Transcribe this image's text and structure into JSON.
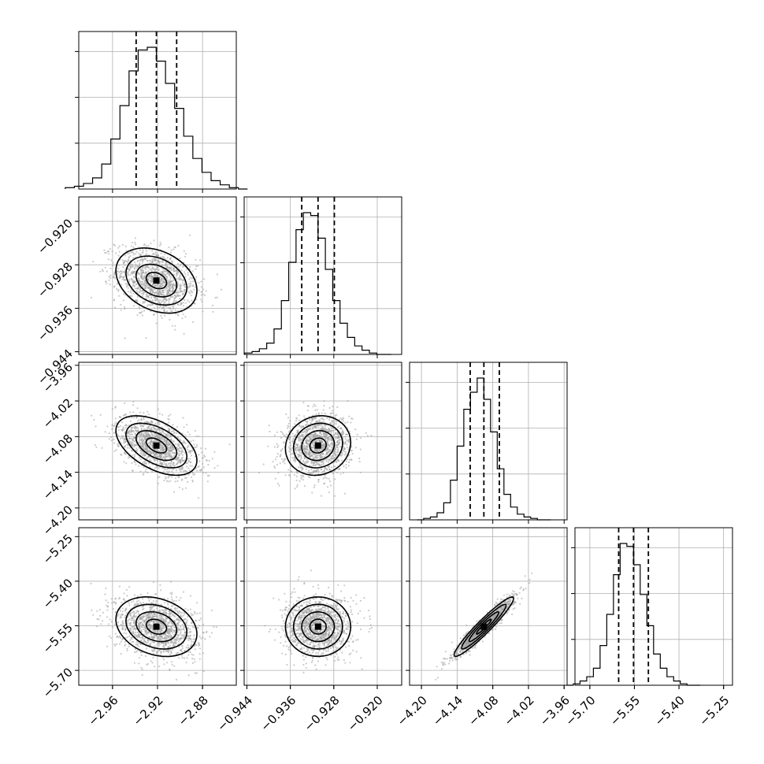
{
  "chart_data": {
    "type": "corner",
    "parameters": [
      {
        "ticks": [
          -2.96,
          -2.92,
          -2.88
        ],
        "tick_labels": [
          "−2.96",
          "−2.92",
          "−2.88"
        ],
        "range": [
          -2.99,
          -2.85
        ],
        "median": -2.921,
        "q16": -2.939,
        "q84": -2.903,
        "sigma": 0.018
      },
      {
        "ticks": [
          -0.944,
          -0.936,
          -0.928,
          -0.92
        ],
        "tick_labels": [
          "−0.944",
          "−0.936",
          "−0.928",
          "−0.920"
        ],
        "range": [
          -0.9445,
          -0.9155
        ],
        "median": -0.9309,
        "q16": -0.9339,
        "q84": -0.9279,
        "sigma": 0.003
      },
      {
        "ticks": [
          -4.2,
          -4.14,
          -4.08,
          -4.02,
          -3.96
        ],
        "tick_labels": [
          "−4.20",
          "−4.14",
          "−4.08",
          "−4.02",
          "−3.96"
        ],
        "range": [
          -4.22,
          -3.955
        ],
        "median": -4.095,
        "q16": -4.118,
        "q84": -4.069,
        "sigma": 0.025
      },
      {
        "ticks": [
          -5.7,
          -5.55,
          -5.4,
          -5.25
        ],
        "tick_labels": [
          "−5.70",
          "−5.55",
          "−5.40",
          "−5.25"
        ],
        "range": [
          -5.75,
          -5.22
        ],
        "median": -5.553,
        "q16": -5.603,
        "q84": -5.503,
        "sigma": 0.05
      }
    ],
    "histograms": [
      {
        "param": 0,
        "counts": [
          1,
          2,
          4,
          8,
          18,
          36,
          60,
          85,
          100,
          102,
          92,
          76,
          58,
          38,
          22,
          12,
          6,
          3,
          1,
          0
        ]
      },
      {
        "param": 1,
        "counts": [
          1,
          2,
          4,
          8,
          18,
          38,
          65,
          88,
          100,
          98,
          82,
          60,
          38,
          22,
          12,
          6,
          3,
          1,
          0,
          0
        ]
      },
      {
        "param": 2,
        "counts": [
          0,
          1,
          2,
          5,
          12,
          28,
          52,
          78,
          90,
          100,
          85,
          62,
          36,
          18,
          9,
          4,
          2,
          1,
          0,
          0
        ]
      },
      {
        "param": 3,
        "counts": [
          0,
          1,
          3,
          6,
          12,
          28,
          50,
          78,
          100,
          98,
          85,
          64,
          42,
          22,
          12,
          6,
          3,
          1,
          0,
          0
        ]
      }
    ],
    "correlations": [
      {
        "x": 0,
        "y": 1,
        "rho": -0.3
      },
      {
        "x": 0,
        "y": 2,
        "rho": -0.5
      },
      {
        "x": 1,
        "y": 2,
        "rho": 0.1
      },
      {
        "x": 0,
        "y": 3,
        "rho": -0.25
      },
      {
        "x": 1,
        "y": 3,
        "rho": 0.0
      },
      {
        "x": 2,
        "y": 3,
        "rho": 0.95
      }
    ],
    "grid": true,
    "quantiles": [
      0.16,
      0.5,
      0.84
    ],
    "contour_levels_sigma": [
      0.5,
      1.0,
      1.5,
      2.0
    ]
  }
}
